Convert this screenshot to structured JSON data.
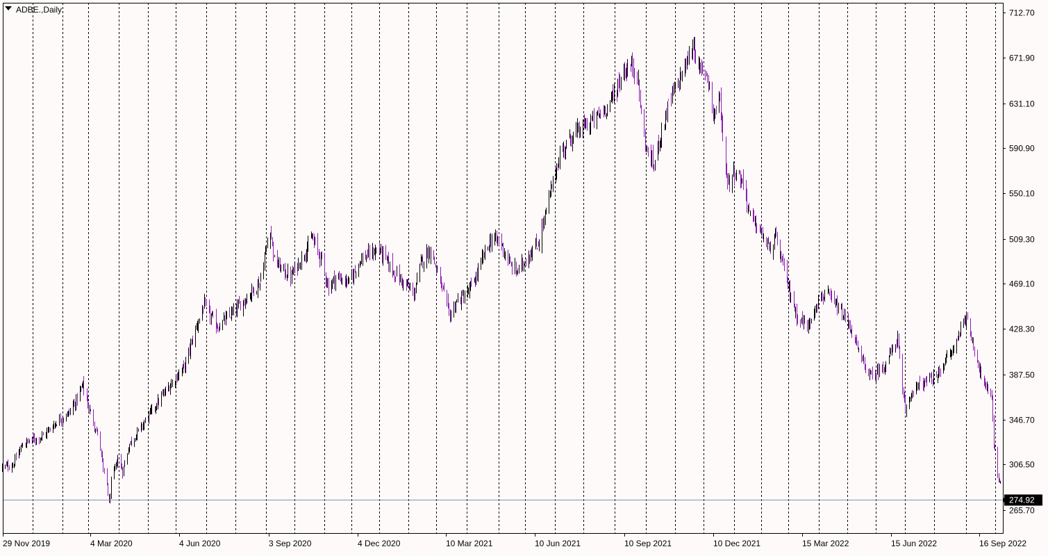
{
  "chart_data": {
    "type": "bar",
    "title": "ADBE.,Daily",
    "colors": {
      "background": "#fffafa",
      "bullish": "#000000",
      "bearish": "#8a1fb0",
      "grid": "#000000",
      "last_price_line": "#7f8fb0",
      "last_price_box": "#000000",
      "last_price_text": "#ffffff"
    },
    "ylim": [
      253,
      721
    ],
    "y_ticks": [
      "712.70",
      "671.90",
      "631.10",
      "590.90",
      "550.10",
      "509.30",
      "469.10",
      "428.30",
      "387.50",
      "346.70",
      "306.50",
      "265.70"
    ],
    "x_ticks": [
      "29 Nov 2019",
      "4 Mar 2020",
      "4 Jun 2020",
      "3 Sep 2020",
      "4 Dec 2020",
      "10 Mar 2021",
      "10 Jun 2021",
      "10 Sep 2021",
      "10 Dec 2021",
      "15 Mar 2022",
      "15 Jun 2022",
      "16 Sep 2022"
    ],
    "x_range": [
      "2019-11-29",
      "2022-09-16"
    ],
    "last_price": "274.92",
    "grid": "vertical-dashed",
    "close_anchors": [
      [
        "2019-11-29",
        304
      ],
      [
        "2019-12-10",
        306
      ],
      [
        "2019-12-20",
        325
      ],
      [
        "2020-01-10",
        332
      ],
      [
        "2020-01-24",
        345
      ],
      [
        "2020-02-05",
        352
      ],
      [
        "2020-02-12",
        362
      ],
      [
        "2020-02-20",
        378
      ],
      [
        "2020-02-25",
        360
      ],
      [
        "2020-03-04",
        340
      ],
      [
        "2020-03-09",
        322
      ],
      [
        "2020-03-12",
        300
      ],
      [
        "2020-03-16",
        290
      ],
      [
        "2020-03-18",
        270
      ],
      [
        "2020-03-20",
        290
      ],
      [
        "2020-03-27",
        312
      ],
      [
        "2020-04-01",
        300
      ],
      [
        "2020-04-08",
        325
      ],
      [
        "2020-04-20",
        340
      ],
      [
        "2020-05-05",
        360
      ],
      [
        "2020-05-20",
        378
      ],
      [
        "2020-06-04",
        395
      ],
      [
        "2020-06-15",
        428
      ],
      [
        "2020-06-24",
        450
      ],
      [
        "2020-06-30",
        440
      ],
      [
        "2020-07-08",
        430
      ],
      [
        "2020-07-20",
        440
      ],
      [
        "2020-07-31",
        450
      ],
      [
        "2020-08-20",
        470
      ],
      [
        "2020-08-31",
        520
      ],
      [
        "2020-09-04",
        490
      ],
      [
        "2020-09-14",
        480
      ],
      [
        "2020-09-21",
        475
      ],
      [
        "2020-10-01",
        490
      ],
      [
        "2020-10-13",
        510
      ],
      [
        "2020-10-23",
        490
      ],
      [
        "2020-10-30",
        465
      ],
      [
        "2020-11-06",
        475
      ],
      [
        "2020-11-20",
        470
      ],
      [
        "2020-12-01",
        490
      ],
      [
        "2020-12-10",
        495
      ],
      [
        "2020-12-21",
        500
      ],
      [
        "2021-01-05",
        480
      ],
      [
        "2021-01-15",
        470
      ],
      [
        "2021-01-26",
        460
      ],
      [
        "2021-02-03",
        490
      ],
      [
        "2021-02-12",
        500
      ],
      [
        "2021-02-22",
        470
      ],
      [
        "2021-03-04",
        440
      ],
      [
        "2021-03-10",
        452
      ],
      [
        "2021-03-22",
        460
      ],
      [
        "2021-03-31",
        475
      ],
      [
        "2021-04-08",
        495
      ],
      [
        "2021-04-16",
        510
      ],
      [
        "2021-04-26",
        505
      ],
      [
        "2021-05-05",
        485
      ],
      [
        "2021-05-13",
        480
      ],
      [
        "2021-05-24",
        495
      ],
      [
        "2021-06-03",
        505
      ],
      [
        "2021-06-10",
        530
      ],
      [
        "2021-06-18",
        560
      ],
      [
        "2021-06-25",
        585
      ],
      [
        "2021-07-06",
        600
      ],
      [
        "2021-07-20",
        610
      ],
      [
        "2021-08-02",
        618
      ],
      [
        "2021-08-16",
        632
      ],
      [
        "2021-08-30",
        660
      ],
      [
        "2021-09-08",
        665
      ],
      [
        "2021-09-13",
        658
      ],
      [
        "2021-09-17",
        620
      ],
      [
        "2021-09-22",
        590
      ],
      [
        "2021-09-30",
        575
      ],
      [
        "2021-10-06",
        600
      ],
      [
        "2021-10-15",
        630
      ],
      [
        "2021-10-25",
        650
      ],
      [
        "2021-11-04",
        670
      ],
      [
        "2021-11-10",
        685
      ],
      [
        "2021-11-15",
        660
      ],
      [
        "2021-11-22",
        660
      ],
      [
        "2021-11-26",
        650
      ],
      [
        "2021-11-30",
        620
      ],
      [
        "2021-12-07",
        635
      ],
      [
        "2021-12-10",
        600
      ],
      [
        "2021-12-15",
        560
      ],
      [
        "2021-12-22",
        570
      ],
      [
        "2021-12-31",
        560
      ],
      [
        "2022-01-07",
        530
      ],
      [
        "2022-01-18",
        515
      ],
      [
        "2022-01-27",
        500
      ],
      [
        "2022-02-03",
        510
      ],
      [
        "2022-02-14",
        470
      ],
      [
        "2022-02-24",
        440
      ],
      [
        "2022-03-08",
        430
      ],
      [
        "2022-03-15",
        450
      ],
      [
        "2022-03-25",
        460
      ],
      [
        "2022-04-05",
        450
      ],
      [
        "2022-04-20",
        430
      ],
      [
        "2022-05-02",
        400
      ],
      [
        "2022-05-12",
        385
      ],
      [
        "2022-05-25",
        395
      ],
      [
        "2022-06-03",
        410
      ],
      [
        "2022-06-08",
        420
      ],
      [
        "2022-06-13",
        370
      ],
      [
        "2022-06-16",
        355
      ],
      [
        "2022-06-24",
        375
      ],
      [
        "2022-07-06",
        380
      ],
      [
        "2022-07-18",
        385
      ],
      [
        "2022-07-27",
        400
      ],
      [
        "2022-08-05",
        410
      ],
      [
        "2022-08-16",
        440
      ],
      [
        "2022-08-22",
        425
      ],
      [
        "2022-08-29",
        400
      ],
      [
        "2022-09-06",
        375
      ],
      [
        "2022-09-13",
        370
      ],
      [
        "2022-09-15",
        325
      ],
      [
        "2022-09-19",
        295
      ],
      [
        "2022-09-27",
        285
      ],
      [
        "2022-10-03",
        275
      ]
    ]
  }
}
